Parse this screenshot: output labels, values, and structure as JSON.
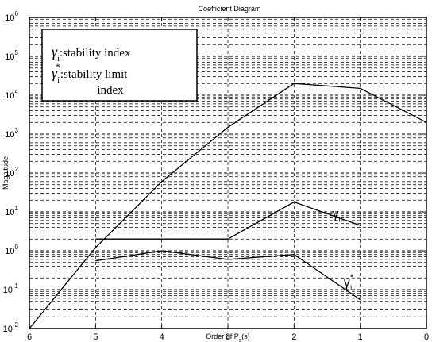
{
  "chart_data": {
    "type": "line",
    "title": "Coefficient Diagram",
    "xlabel": "Order of P_s(s)",
    "ylabel": "Magnitude",
    "x_reversed": true,
    "xlim": [
      6,
      0
    ],
    "ylim": [
      0.01,
      1000000
    ],
    "y_scale": "log",
    "grid": true,
    "x_ticks": [
      6,
      5,
      4,
      3,
      2,
      1,
      0
    ],
    "y_ticks": [
      {
        "value": 0.01,
        "base": "10",
        "exp": "-2"
      },
      {
        "value": 0.1,
        "base": "10",
        "exp": "-1"
      },
      {
        "value": 1,
        "base": "10",
        "exp": "0"
      },
      {
        "value": 10,
        "base": "10",
        "exp": "1"
      },
      {
        "value": 100,
        "base": "10",
        "exp": "2"
      },
      {
        "value": 1000,
        "base": "10",
        "exp": "3"
      },
      {
        "value": 10000,
        "base": "10",
        "exp": "4"
      },
      {
        "value": 100000,
        "base": "10",
        "exp": "5"
      },
      {
        "value": 1000000,
        "base": "10",
        "exp": "6"
      }
    ],
    "series": [
      {
        "x": [
          6,
          5,
          4,
          3,
          2,
          1,
          0
        ],
        "y": [
          0.01,
          1.2,
          60,
          1500,
          20000,
          15000,
          2000
        ]
      },
      {
        "x": [
          5,
          4,
          3,
          2,
          1
        ],
        "y": [
          2,
          2,
          2,
          18,
          4.5
        ]
      },
      {
        "x": [
          5,
          4,
          3,
          2,
          1
        ],
        "y": [
          0.55,
          1.0,
          0.6,
          0.8,
          0.055
        ]
      }
    ],
    "legend": {
      "placement": "top-left",
      "entries": [
        {
          "symbol": "γ",
          "sub": "i",
          "sup": "",
          "text": ":stability index"
        },
        {
          "symbol": "γ",
          "sub": "i",
          "sup": "*",
          "text": ":stability limit",
          "text2": "index"
        }
      ]
    },
    "annotations": [
      {
        "text": "γ",
        "sub": "i",
        "sup": "",
        "x": 1.42,
        "y": 7
      },
      {
        "text": "γ",
        "sub": "i",
        "sup": "*",
        "x": 1.25,
        "y": 0.12
      }
    ]
  },
  "colors": {
    "line": "#000000",
    "grid": "#000000",
    "background": "#ffffff"
  }
}
